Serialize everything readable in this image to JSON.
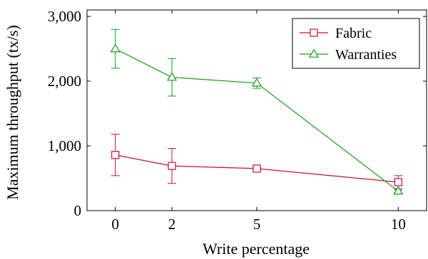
{
  "chart_data": {
    "type": "line",
    "xlabel": "Write percentage",
    "ylabel": "Maximum throughput (tx/s)",
    "x": [
      0,
      2,
      5,
      10
    ],
    "xlim": [
      -1,
      11
    ],
    "ylim": [
      0,
      3100
    ],
    "xticks": [
      "0",
      "2",
      "5",
      "10"
    ],
    "yticks": [
      {
        "value": 0,
        "label": "0"
      },
      {
        "value": 1000,
        "label": "1,000"
      },
      {
        "value": 2000,
        "label": "2,000"
      },
      {
        "value": 3000,
        "label": "3,000"
      }
    ],
    "grid": false,
    "legend_position": "top-right",
    "series": [
      {
        "name": "Fabric",
        "color": "#c8102e",
        "marker": "square",
        "values": [
          860,
          690,
          650,
          440
        ],
        "errors": [
          320,
          270,
          20,
          100
        ]
      },
      {
        "name": "Warranties",
        "color": "#1a9a1a",
        "marker": "triangle",
        "values": [
          2500,
          2060,
          1970,
          300
        ],
        "errors": [
          300,
          290,
          80,
          20
        ]
      }
    ]
  }
}
